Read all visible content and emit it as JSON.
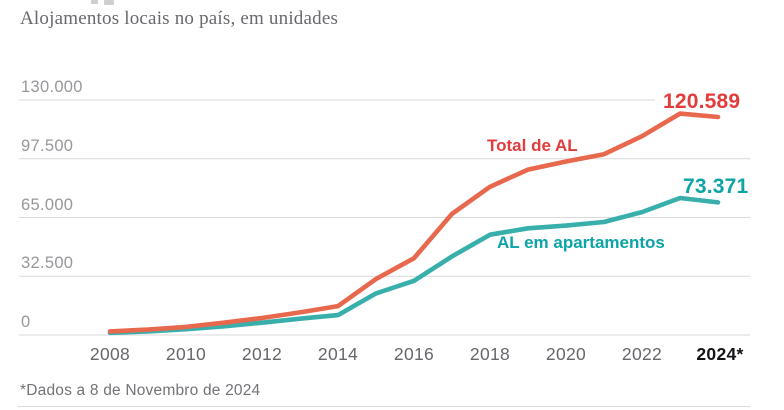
{
  "page": {
    "subtitle": "Alojamentos locais no país, em unidades",
    "footnote": "*Dados a 8 de Novembro de 2024"
  },
  "colors": {
    "total_line": "#e8684e",
    "total_label": "#e23c3c",
    "apartments_line": "#39afac",
    "apartments_label": "#0ca4a6",
    "grid": "#d9d9d9",
    "ytick_text": "#97979c",
    "xtick_text": "#66666b",
    "xtick_emphasis_text": "#141418"
  },
  "chart_data": {
    "type": "line",
    "title": "Alojamentos locais no país, em unidades",
    "x": [
      2008,
      2009,
      2010,
      2011,
      2012,
      2013,
      2014,
      2015,
      2016,
      2017,
      2018,
      2019,
      2020,
      2021,
      2022,
      2023,
      2024
    ],
    "x_ticks": [
      {
        "label": "2008",
        "year": 2008,
        "emphasis": false
      },
      {
        "label": "2010",
        "year": 2010,
        "emphasis": false
      },
      {
        "label": "2012",
        "year": 2012,
        "emphasis": false
      },
      {
        "label": "2014",
        "year": 2014,
        "emphasis": false
      },
      {
        "label": "2016",
        "year": 2016,
        "emphasis": false
      },
      {
        "label": "2018",
        "year": 2018,
        "emphasis": false
      },
      {
        "label": "2020",
        "year": 2020,
        "emphasis": false
      },
      {
        "label": "2022",
        "year": 2022,
        "emphasis": false
      },
      {
        "label": "2024*",
        "year": 2024,
        "emphasis": true
      }
    ],
    "y_ticks": [
      {
        "label": "0",
        "value": 0
      },
      {
        "label": "32.500",
        "value": 32500
      },
      {
        "label": "65.000",
        "value": 65000
      },
      {
        "label": "97.500",
        "value": 97500
      },
      {
        "label": "130.000",
        "value": 130000
      }
    ],
    "ylim": [
      0,
      130000
    ],
    "grid": true,
    "legend_position": "inline-labels",
    "series": [
      {
        "name": "AL em apartamentos",
        "color": "#39afac",
        "label_color": "#0ca4a6",
        "end_label": "73.371",
        "end_value": 73371,
        "values": [
          1200,
          2000,
          3200,
          4800,
          6800,
          9000,
          11000,
          23000,
          30000,
          43500,
          55500,
          59000,
          60500,
          62500,
          68000,
          75800,
          73371
        ]
      },
      {
        "name": "Total de AL",
        "color": "#e8684e",
        "label_color": "#e23c3c",
        "end_label": "120.589",
        "end_value": 120589,
        "values": [
          2000,
          3000,
          4500,
          6800,
          9400,
          12500,
          16000,
          31000,
          42500,
          67000,
          82000,
          91500,
          96000,
          100000,
          110000,
          122500,
          120589
        ]
      }
    ]
  }
}
